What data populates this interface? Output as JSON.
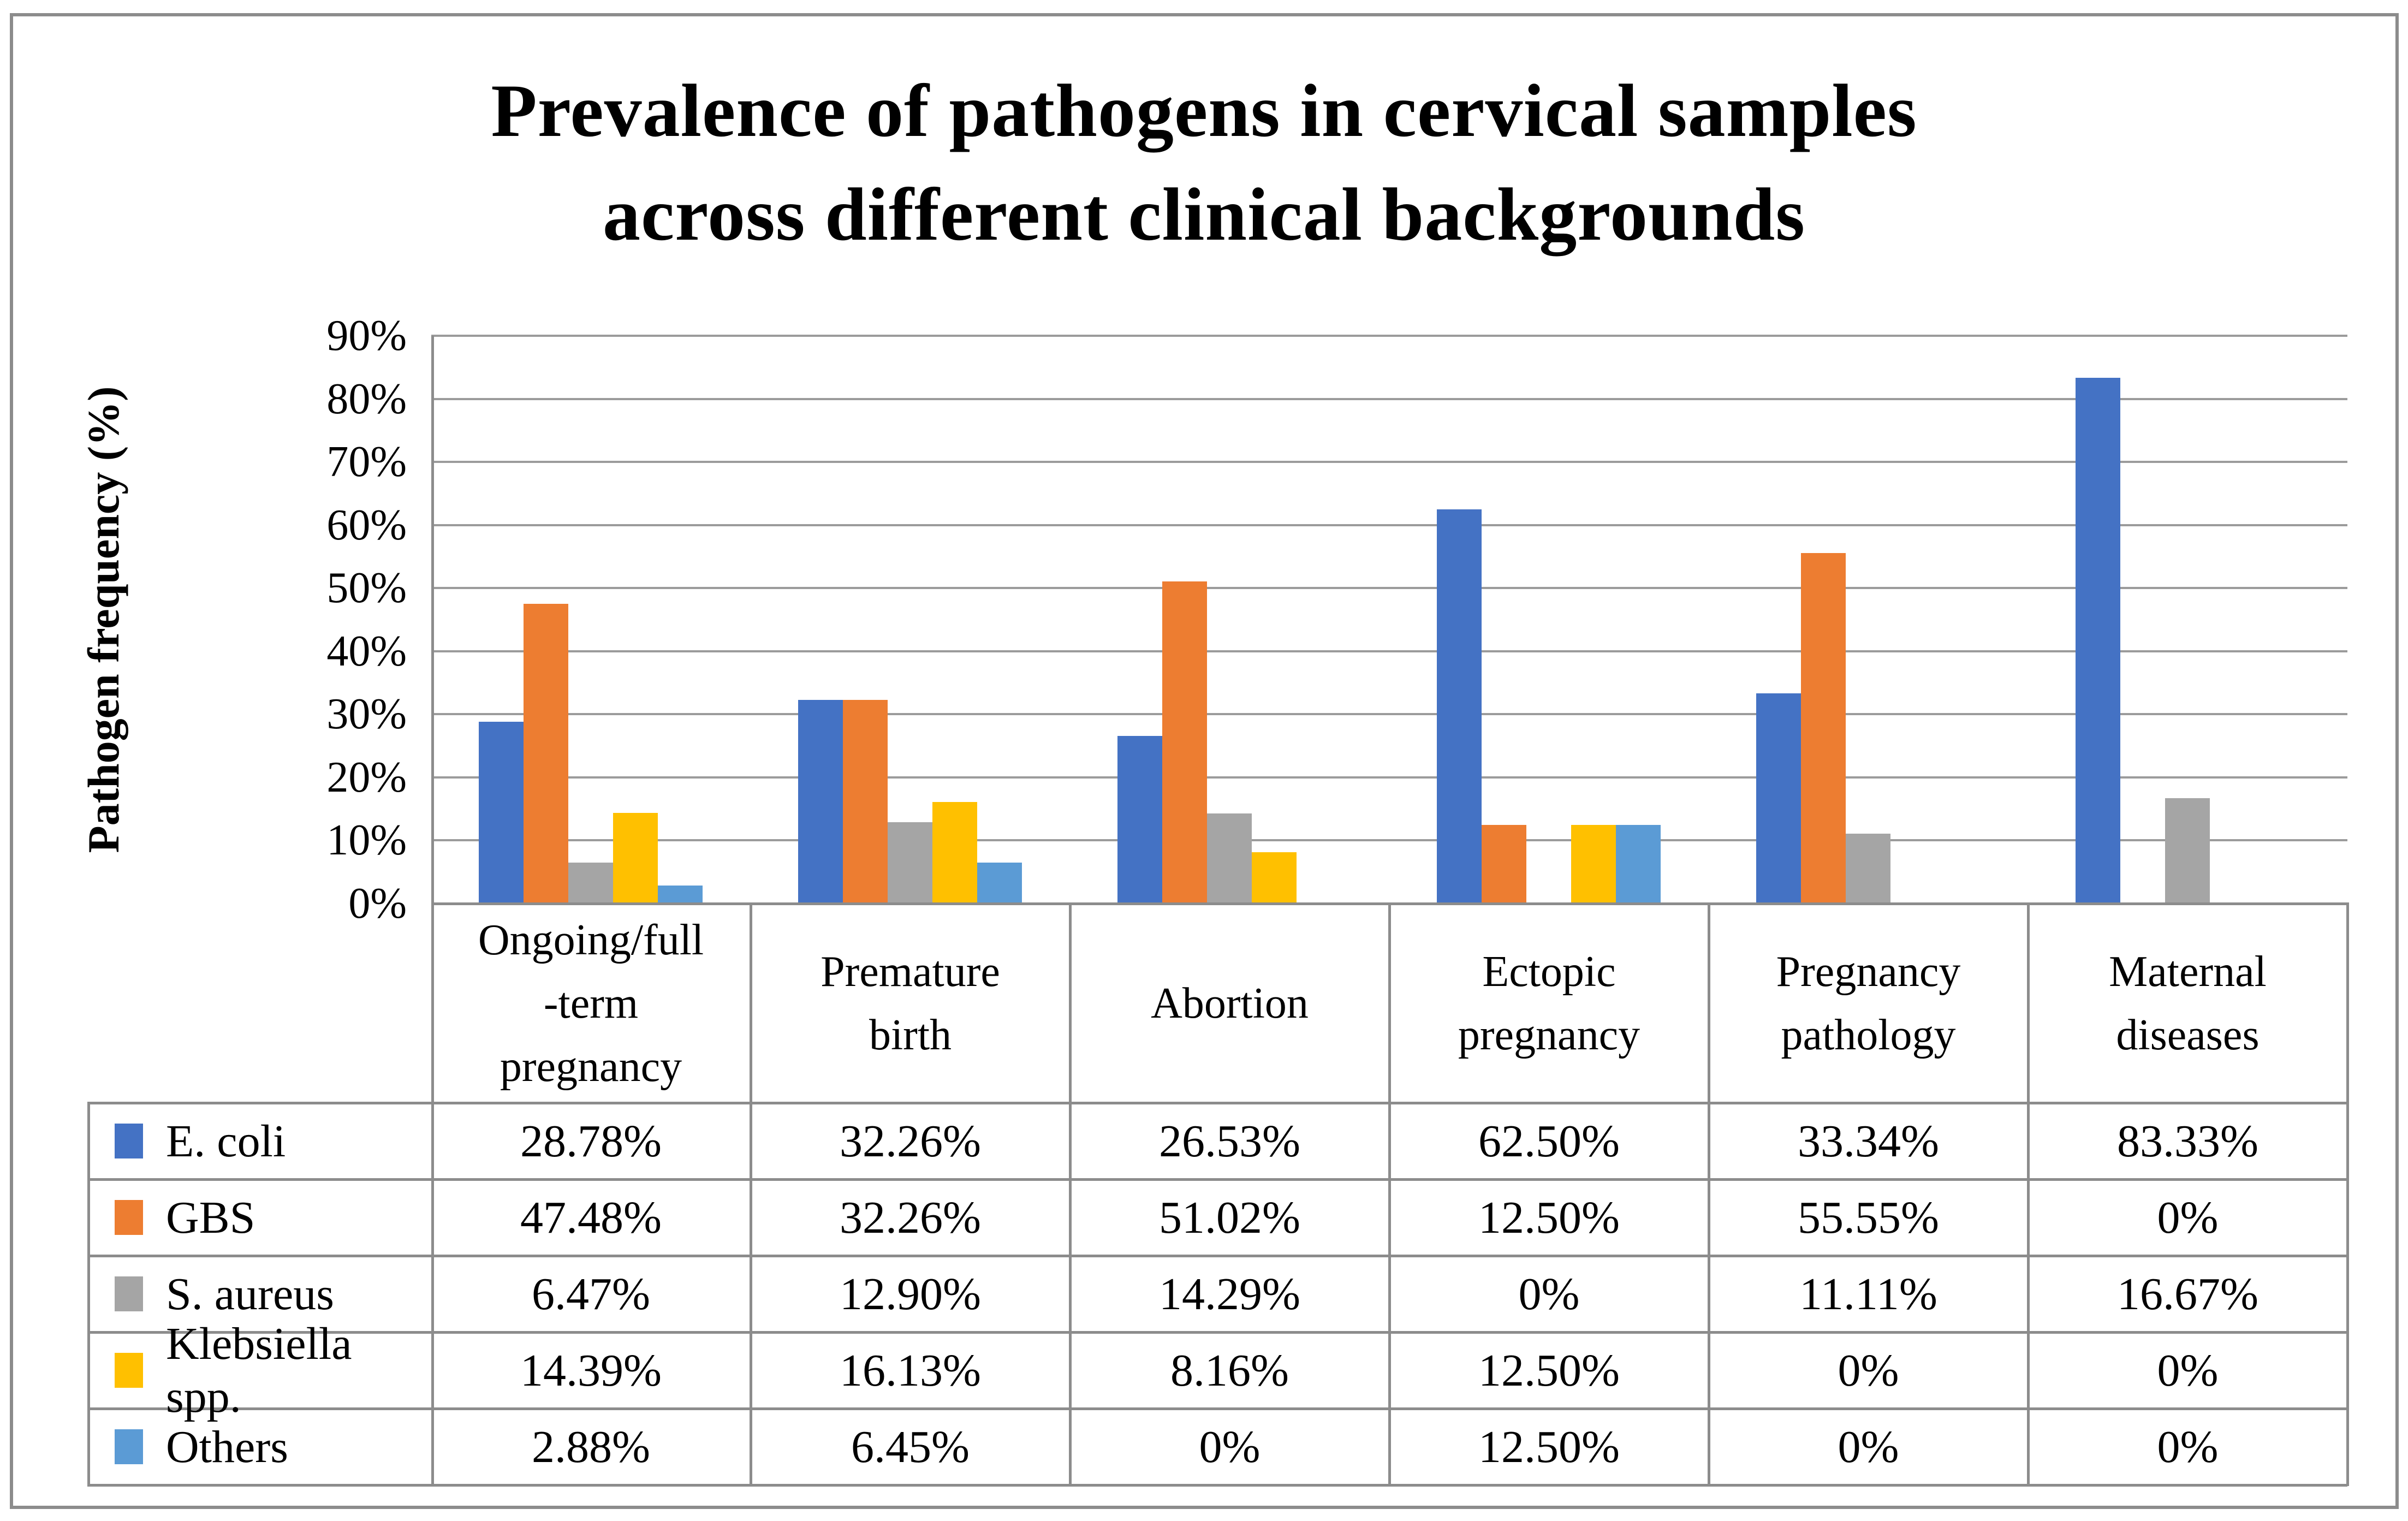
{
  "figure": {
    "title_line1": "Prevalence of pathogens in cervical samples",
    "title_line2": "across different clinical backgrounds"
  },
  "labels": {
    "category_lines": [
      [
        "Ongoing/full",
        "-term",
        "pregnancy"
      ],
      [
        "Premature",
        "birth"
      ],
      [
        "Abortion"
      ],
      [
        "Ectopic",
        "pregnancy"
      ],
      [
        "Pregnancy",
        "pathology"
      ],
      [
        "Maternal",
        "diseases"
      ]
    ]
  },
  "chart_data": {
    "type": "bar",
    "title": "Prevalence of pathogens in cervical samples across different clinical backgrounds",
    "ylabel": "Pathogen frequency (%)",
    "ylim": [
      0,
      90
    ],
    "ytick_step": 10,
    "yticks": [
      "90%",
      "80%",
      "70%",
      "60%",
      "50%",
      "40%",
      "30%",
      "20%",
      "10%",
      "0%"
    ],
    "grid": true,
    "legend_position": "table-left-column",
    "categories": [
      "Ongoing/full-term pregnancy",
      "Premature birth",
      "Abortion",
      "Ectopic pregnancy",
      "Pregnancy pathology",
      "Maternal diseases"
    ],
    "series": [
      {
        "name": "E. coli",
        "color": "#4472C4",
        "values": [
          28.78,
          32.26,
          26.53,
          62.5,
          33.34,
          83.33
        ],
        "display": [
          "28.78%",
          "32.26%",
          "26.53%",
          "62.50%",
          "33.34%",
          "83.33%"
        ]
      },
      {
        "name": "GBS",
        "color": "#ED7D31",
        "values": [
          47.48,
          32.26,
          51.02,
          12.5,
          55.55,
          0
        ],
        "display": [
          "47.48%",
          "32.26%",
          "51.02%",
          "12.50%",
          "55.55%",
          "0%"
        ]
      },
      {
        "name": "S. aureus",
        "color": "#A5A5A5",
        "values": [
          6.47,
          12.9,
          14.29,
          0,
          11.11,
          16.67
        ],
        "display": [
          "6.47%",
          "12.90%",
          "14.29%",
          "0%",
          "11.11%",
          "16.67%"
        ]
      },
      {
        "name": "Klebsiella spp.",
        "color": "#FFC000",
        "values": [
          14.39,
          16.13,
          8.16,
          12.5,
          0,
          0
        ],
        "display": [
          "14.39%",
          "16.13%",
          "8.16%",
          "12.50%",
          "0%",
          "0%"
        ]
      },
      {
        "name": "Others",
        "color": "#5B9BD5",
        "values": [
          2.88,
          6.45,
          0,
          12.5,
          0,
          0
        ],
        "display": [
          "2.88%",
          "6.45%",
          "0%",
          "12.50%",
          "0%",
          "0%"
        ]
      }
    ]
  }
}
